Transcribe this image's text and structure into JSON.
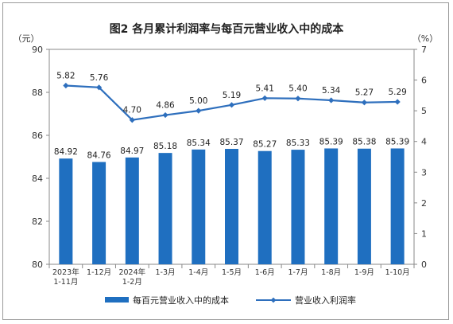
{
  "chart_data": {
    "type": "bar+line",
    "title": "图2  各月累计利润率与每百元营业收入中的成本",
    "left_unit": "（元）",
    "right_unit": "（%）",
    "categories": [
      [
        "2023年",
        "1-11月"
      ],
      [
        "1-12月"
      ],
      [
        "2024年",
        "1-2月"
      ],
      [
        "1-3月"
      ],
      [
        "1-4月"
      ],
      [
        "1-5月"
      ],
      [
        "1-6月"
      ],
      [
        "1-7月"
      ],
      [
        "1-8月"
      ],
      [
        "1-9月"
      ],
      [
        "1-10月"
      ]
    ],
    "left_axis": {
      "min": 80,
      "max": 90,
      "ticks": [
        "80",
        "82",
        "84",
        "86",
        "88",
        "90"
      ]
    },
    "right_axis": {
      "min": 0,
      "max": 7,
      "ticks": [
        "0",
        "1",
        "2",
        "3",
        "4",
        "5",
        "6",
        "7"
      ]
    },
    "series": [
      {
        "name": "每百元营业收入中的成本",
        "type": "bar",
        "axis": "left",
        "color": "#1f6fc0",
        "values": [
          84.92,
          84.76,
          84.97,
          85.18,
          85.34,
          85.37,
          85.27,
          85.33,
          85.39,
          85.38,
          85.39
        ],
        "labels": [
          "84.92",
          "84.76",
          "84.97",
          "85.18",
          "85.34",
          "85.37",
          "85.27",
          "85.33",
          "85.39",
          "85.38",
          "85.39"
        ]
      },
      {
        "name": "营业收入利润率",
        "type": "line",
        "axis": "right",
        "color": "#2e6fbd",
        "values": [
          5.82,
          5.76,
          4.7,
          4.86,
          5.0,
          5.19,
          5.41,
          5.4,
          5.34,
          5.27,
          5.29
        ],
        "labels": [
          "5.82",
          "5.76",
          "4.70",
          "4.86",
          "5.00",
          "5.19",
          "5.41",
          "5.40",
          "5.34",
          "5.27",
          "5.29"
        ]
      }
    ],
    "legend_position": "bottom"
  }
}
